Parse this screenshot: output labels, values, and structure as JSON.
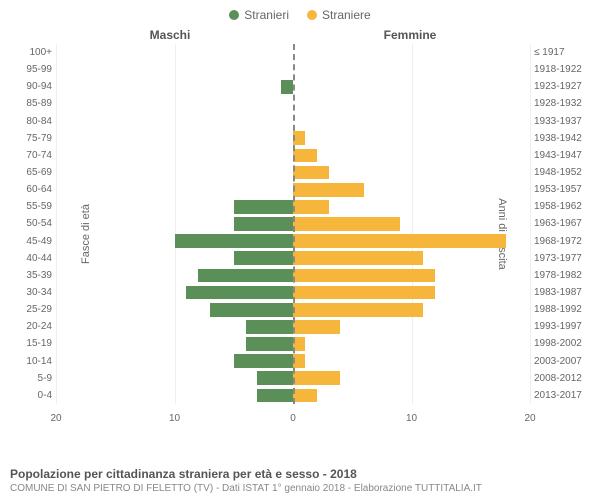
{
  "chart": {
    "type": "population-pyramid",
    "legend": {
      "male": {
        "label": "Stranieri",
        "color": "#5a8f57"
      },
      "female": {
        "label": "Straniere",
        "color": "#f6b53b"
      }
    },
    "side_titles": {
      "left": "Maschi",
      "right": "Femmine"
    },
    "y_axis_left_label": "Fasce di età",
    "y_axis_right_label": "Anni di nascita",
    "x_max": 20,
    "x_ticks": [
      20,
      10,
      0,
      10,
      20
    ],
    "background_color": "#ffffff",
    "grid_color": "#eeeeee",
    "center_line_color": "#888888",
    "rows": [
      {
        "age": "100+",
        "birth": "≤ 1917",
        "m": 0,
        "f": 0
      },
      {
        "age": "95-99",
        "birth": "1918-1922",
        "m": 0,
        "f": 0
      },
      {
        "age": "90-94",
        "birth": "1923-1927",
        "m": 1,
        "f": 0
      },
      {
        "age": "85-89",
        "birth": "1928-1932",
        "m": 0,
        "f": 0
      },
      {
        "age": "80-84",
        "birth": "1933-1937",
        "m": 0,
        "f": 0
      },
      {
        "age": "75-79",
        "birth": "1938-1942",
        "m": 0,
        "f": 1
      },
      {
        "age": "70-74",
        "birth": "1943-1947",
        "m": 0,
        "f": 2
      },
      {
        "age": "65-69",
        "birth": "1948-1952",
        "m": 0,
        "f": 3
      },
      {
        "age": "60-64",
        "birth": "1953-1957",
        "m": 0,
        "f": 6
      },
      {
        "age": "55-59",
        "birth": "1958-1962",
        "m": 5,
        "f": 3
      },
      {
        "age": "50-54",
        "birth": "1963-1967",
        "m": 5,
        "f": 9
      },
      {
        "age": "45-49",
        "birth": "1968-1972",
        "m": 10,
        "f": 18
      },
      {
        "age": "40-44",
        "birth": "1973-1977",
        "m": 5,
        "f": 11
      },
      {
        "age": "35-39",
        "birth": "1978-1982",
        "m": 8,
        "f": 12
      },
      {
        "age": "30-34",
        "birth": "1983-1987",
        "m": 9,
        "f": 12
      },
      {
        "age": "25-29",
        "birth": "1988-1992",
        "m": 7,
        "f": 11
      },
      {
        "age": "20-24",
        "birth": "1993-1997",
        "m": 4,
        "f": 4
      },
      {
        "age": "15-19",
        "birth": "1998-2002",
        "m": 4,
        "f": 1
      },
      {
        "age": "10-14",
        "birth": "2003-2007",
        "m": 5,
        "f": 1
      },
      {
        "age": "5-9",
        "birth": "2008-2012",
        "m": 3,
        "f": 4
      },
      {
        "age": "0-4",
        "birth": "2013-2017",
        "m": 3,
        "f": 2
      }
    ],
    "footer_title": "Popolazione per cittadinanza straniera per età e sesso - 2018",
    "footer_sub": "COMUNE DI SAN PIETRO DI FELETTO (TV) - Dati ISTAT 1° gennaio 2018 - Elaborazione TUTTITALIA.IT"
  }
}
